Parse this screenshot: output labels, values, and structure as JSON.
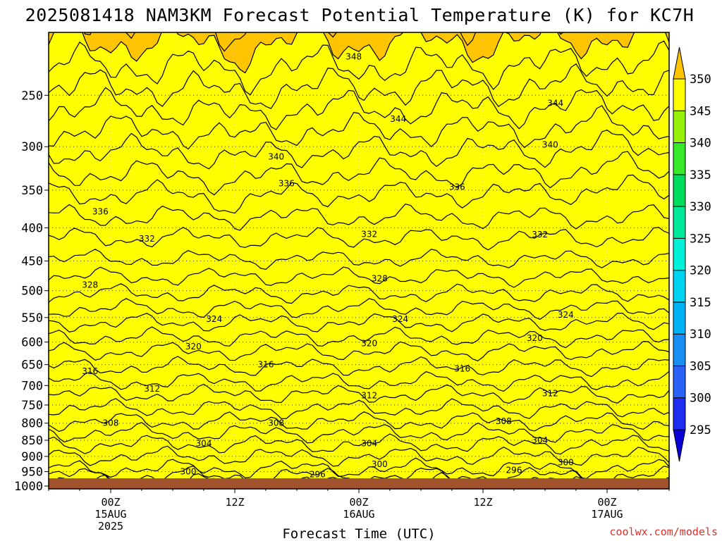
{
  "chart_data": {
    "type": "heatmap",
    "title": "2025081418 NAM3KM Forecast Potential Temperature (K) for KC7H",
    "xlabel": "Forecast Time (UTC)",
    "ylabel": "",
    "credit": "coolwx.com/models",
    "x_ticks": [
      {
        "line1": "00Z",
        "line2": "15AUG",
        "line3": "2025",
        "hour": 6
      },
      {
        "line1": "12Z",
        "line2": "",
        "line3": "",
        "hour": 18
      },
      {
        "line1": "00Z",
        "line2": "16AUG",
        "line3": "",
        "hour": 30
      },
      {
        "line1": "12Z",
        "line2": "",
        "line3": "",
        "hour": 42
      },
      {
        "line1": "00Z",
        "line2": "17AUG",
        "line3": "",
        "hour": 54
      }
    ],
    "x_range_hours_from_init": [
      0,
      60
    ],
    "y_ticks": [
      "250",
      "300",
      "350",
      "400",
      "450",
      "500",
      "550",
      "600",
      "650",
      "700",
      "750",
      "800",
      "850",
      "900",
      "950",
      "1000"
    ],
    "y_scale": "log",
    "y_range_hpa": [
      200,
      1010
    ],
    "colorbar": {
      "labels": [
        "350",
        "345",
        "340",
        "335",
        "330",
        "325",
        "320",
        "315",
        "310",
        "305",
        "300",
        "295"
      ],
      "bands": [
        {
          "min": 290,
          "max": 295,
          "color": "#0a00d8"
        },
        {
          "min": 295,
          "max": 300,
          "color": "#1f2df0"
        },
        {
          "min": 300,
          "max": 305,
          "color": "#2a62f5"
        },
        {
          "min": 305,
          "max": 310,
          "color": "#178ef2"
        },
        {
          "min": 310,
          "max": 315,
          "color": "#00b2f4"
        },
        {
          "min": 315,
          "max": 320,
          "color": "#00d2f2"
        },
        {
          "min": 320,
          "max": 325,
          "color": "#00f0d8"
        },
        {
          "min": 325,
          "max": 330,
          "color": "#00e898"
        },
        {
          "min": 330,
          "max": 335,
          "color": "#00dc5e"
        },
        {
          "min": 335,
          "max": 340,
          "color": "#38e82a"
        },
        {
          "min": 340,
          "max": 345,
          "color": "#96f20a"
        },
        {
          "min": 345,
          "max": 350,
          "color": "#ffff00"
        },
        {
          "min": 350,
          "max": 355,
          "color": "#ffc400"
        }
      ]
    },
    "ground_color": "#a0522d",
    "contour_interval": 2,
    "profile": {
      "theta_k": [
        296,
        298,
        300,
        302,
        304,
        306,
        308,
        310,
        312,
        314,
        316,
        318,
        320,
        322,
        324,
        326,
        328,
        330,
        332,
        334,
        336,
        338,
        340,
        342,
        344,
        346,
        348,
        350
      ],
      "pressure_hpa": [
        990,
        965,
        940,
        900,
        862,
        828,
        795,
        760,
        722,
        690,
        655,
        620,
        590,
        560,
        533,
        505,
        476,
        447,
        415,
        385,
        355,
        330,
        305,
        283,
        262,
        243,
        225,
        207
      ]
    },
    "contour_labels": [
      {
        "value": 348,
        "hour": 29.5,
        "pressure": 218
      },
      {
        "value": 344,
        "hour": 33.8,
        "pressure": 272
      },
      {
        "value": 344,
        "hour": 49.0,
        "pressure": 257
      },
      {
        "value": 340,
        "hour": 22.0,
        "pressure": 311
      },
      {
        "value": 340,
        "hour": 48.5,
        "pressure": 298
      },
      {
        "value": 336,
        "hour": 5.0,
        "pressure": 378
      },
      {
        "value": 336,
        "hour": 23.0,
        "pressure": 342
      },
      {
        "value": 336,
        "hour": 39.5,
        "pressure": 346
      },
      {
        "value": 332,
        "hour": 9.5,
        "pressure": 416
      },
      {
        "value": 332,
        "hour": 31.0,
        "pressure": 409
      },
      {
        "value": 332,
        "hour": 47.5,
        "pressure": 410
      },
      {
        "value": 328,
        "hour": 4.0,
        "pressure": 490
      },
      {
        "value": 328,
        "hour": 32.0,
        "pressure": 479
      },
      {
        "value": 324,
        "hour": 16.0,
        "pressure": 553
      },
      {
        "value": 324,
        "hour": 34.0,
        "pressure": 553
      },
      {
        "value": 324,
        "hour": 50.0,
        "pressure": 545
      },
      {
        "value": 320,
        "hour": 14.0,
        "pressure": 610
      },
      {
        "value": 320,
        "hour": 31.0,
        "pressure": 603
      },
      {
        "value": 320,
        "hour": 47.0,
        "pressure": 592
      },
      {
        "value": 316,
        "hour": 4.0,
        "pressure": 665
      },
      {
        "value": 316,
        "hour": 21.0,
        "pressure": 650
      },
      {
        "value": 316,
        "hour": 40.0,
        "pressure": 660
      },
      {
        "value": 312,
        "hour": 10.0,
        "pressure": 708
      },
      {
        "value": 312,
        "hour": 31.0,
        "pressure": 725
      },
      {
        "value": 312,
        "hour": 48.5,
        "pressure": 720
      },
      {
        "value": 308,
        "hour": 6.0,
        "pressure": 800
      },
      {
        "value": 308,
        "hour": 22.0,
        "pressure": 800
      },
      {
        "value": 308,
        "hour": 44.0,
        "pressure": 795
      },
      {
        "value": 304,
        "hour": 15.0,
        "pressure": 860
      },
      {
        "value": 304,
        "hour": 31.0,
        "pressure": 860
      },
      {
        "value": 304,
        "hour": 47.5,
        "pressure": 850
      },
      {
        "value": 300,
        "hour": 13.5,
        "pressure": 950
      },
      {
        "value": 300,
        "hour": 32.0,
        "pressure": 925
      },
      {
        "value": 300,
        "hour": 50.0,
        "pressure": 920
      },
      {
        "value": 296,
        "hour": 26.0,
        "pressure": 960
      },
      {
        "value": 296,
        "hour": 45.0,
        "pressure": 945
      }
    ]
  }
}
